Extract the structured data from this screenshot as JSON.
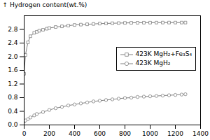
{
  "chart_data": {
    "type": "line",
    "ylabel": "Hydrogen content(wt.%)",
    "xlim": [
      0,
      1400
    ],
    "ylim": [
      0.0,
      3.2
    ],
    "xticks": [
      0,
      200,
      400,
      600,
      800,
      1000,
      1200,
      1400
    ],
    "yticks": [
      {
        "value": 0.0,
        "label": "0.0"
      },
      0.4,
      0.8,
      1.2,
      1.6,
      {
        "value": 2.0,
        "label": "2.0"
      },
      2.4,
      2.8
    ],
    "legend": "right",
    "series": [
      {
        "name": "423K MgH₂+Fe₃S₄",
        "color": "gray",
        "marker": "square",
        "x": [
          0,
          10,
          30,
          50,
          80,
          100,
          120,
          150,
          180,
          200,
          250,
          300,
          350,
          400,
          450,
          500,
          550,
          600,
          650,
          700,
          750,
          800,
          850,
          900,
          950,
          1000,
          1050,
          1100,
          1150,
          1200,
          1250,
          1280
        ],
        "values": [
          1.5,
          2.05,
          2.42,
          2.6,
          2.7,
          2.73,
          2.76,
          2.79,
          2.82,
          2.84,
          2.87,
          2.89,
          2.91,
          2.93,
          2.94,
          2.95,
          2.96,
          2.97,
          2.975,
          2.98,
          2.985,
          2.99,
          2.993,
          2.995,
          2.997,
          2.998,
          2.999,
          3.0,
          3.0,
          3.0,
          3.0,
          3.0
        ]
      },
      {
        "name": "423K MgH₂",
        "color": "gray",
        "marker": "circle",
        "x": [
          0,
          10,
          30,
          50,
          80,
          100,
          150,
          200,
          250,
          300,
          350,
          400,
          450,
          500,
          550,
          600,
          650,
          700,
          750,
          800,
          850,
          900,
          950,
          1000,
          1050,
          1100,
          1150,
          1200,
          1250,
          1280
        ],
        "values": [
          0.1,
          0.13,
          0.17,
          0.22,
          0.28,
          0.32,
          0.38,
          0.44,
          0.49,
          0.53,
          0.57,
          0.6,
          0.63,
          0.66,
          0.69,
          0.71,
          0.73,
          0.75,
          0.77,
          0.79,
          0.8,
          0.82,
          0.83,
          0.84,
          0.85,
          0.86,
          0.87,
          0.88,
          0.89,
          0.9
        ]
      }
    ]
  }
}
